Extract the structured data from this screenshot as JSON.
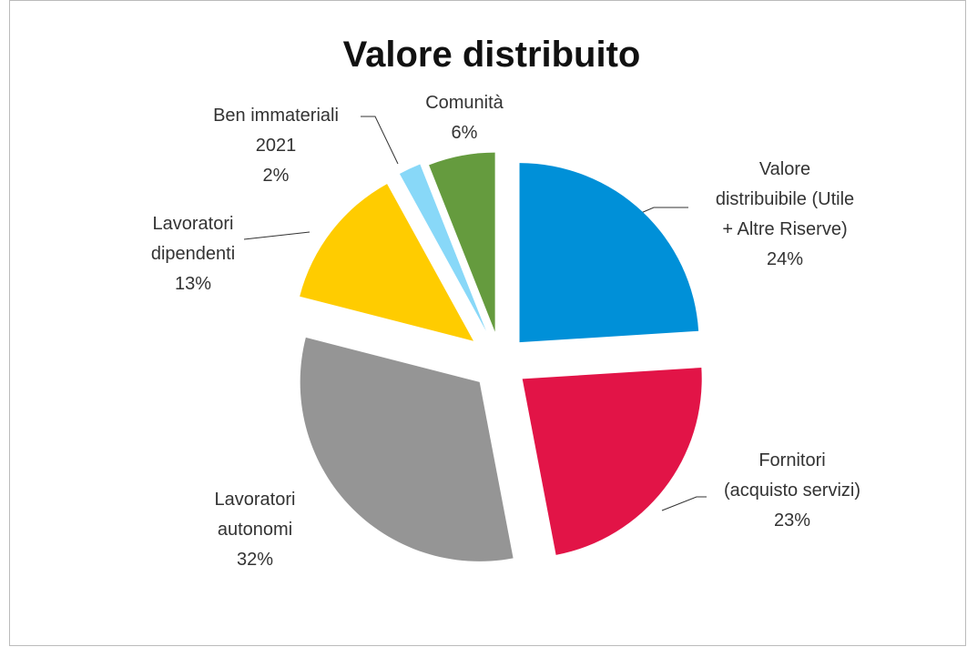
{
  "chart_data": {
    "type": "pie",
    "title": "Valore distribuito",
    "categories": [
      "Valore distribuibile (Utile + Altre Riserve)",
      "Fornitori (acquisto servizi)",
      "Lavoratori autonomi",
      "Lavoratori dipendenti",
      "Ben immateriali 2021",
      "Comunità"
    ],
    "values": [
      24,
      23,
      32,
      13,
      2,
      6
    ],
    "value_labels": [
      "24%",
      "23%",
      "32%",
      "13%",
      "2%",
      "6%"
    ],
    "colors": [
      "#0090d8",
      "#e21447",
      "#959595",
      "#ffcc00",
      "#88d8f8",
      "#659b3e"
    ]
  }
}
